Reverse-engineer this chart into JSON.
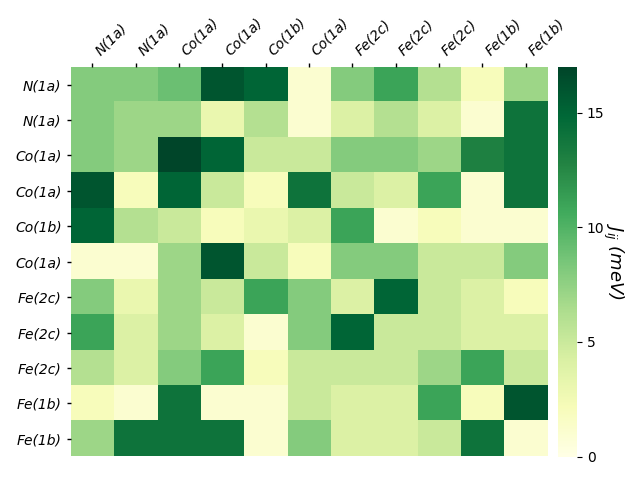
{
  "labels": [
    "N(1a)",
    "N(1a)",
    "Co(1a)",
    "Co(1a)",
    "Co(1b)",
    "Co(1a)",
    "Fe(2c)",
    "Fe(2c)",
    "Fe(2c)",
    "Fe(1b)",
    "Fe(1b)"
  ],
  "matrix": [
    [
      8,
      8,
      9,
      16,
      15,
      1,
      8,
      11,
      6,
      2,
      7
    ],
    [
      8,
      7,
      7,
      3,
      6,
      1,
      4,
      6,
      4,
      1,
      14
    ],
    [
      8,
      7,
      17,
      15,
      5,
      5,
      8,
      8,
      7,
      13,
      14
    ],
    [
      16,
      2,
      15,
      5,
      2,
      14,
      5,
      4,
      11,
      1,
      14
    ],
    [
      15,
      6,
      5,
      2,
      3,
      4,
      11,
      1,
      2,
      1,
      1
    ],
    [
      1,
      1,
      7,
      16,
      5,
      2,
      8,
      8,
      5,
      5,
      8
    ],
    [
      8,
      3,
      7,
      5,
      11,
      8,
      4,
      15,
      5,
      4,
      2
    ],
    [
      11,
      4,
      7,
      4,
      1,
      8,
      15,
      5,
      5,
      4,
      4
    ],
    [
      6,
      4,
      8,
      11,
      2,
      5,
      5,
      5,
      7,
      11,
      5
    ],
    [
      2,
      1,
      14,
      1,
      1,
      5,
      4,
      4,
      11,
      2,
      16
    ],
    [
      7,
      14,
      14,
      14,
      1,
      8,
      4,
      4,
      5,
      14,
      1
    ]
  ],
  "vmin": 0,
  "vmax": 17,
  "cbar_label": "$J_{ij}$ (meV)",
  "cbar_ticks": [
    0,
    5,
    10,
    15
  ],
  "colormap": "YlGn",
  "figsize": [
    6.4,
    4.8
  ],
  "dpi": 100,
  "tick_labelsize": 10,
  "cbar_labelsize": 13,
  "rotation": 45,
  "linewidth": 0
}
